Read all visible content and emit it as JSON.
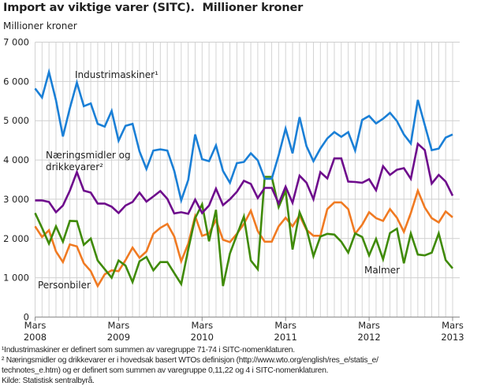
{
  "chart_data": {
    "type": "line",
    "title": "Import av viktige varer (SITC).  Millioner kroner",
    "ylabel": "Millioner kroner",
    "xlabel": "",
    "ylim": [
      0,
      7000
    ],
    "yticks": [
      "0",
      "1 000",
      "2 000",
      "3 000",
      "4 000",
      "5 000",
      "6 000",
      "7 000"
    ],
    "ytick_values": [
      0,
      1000,
      2000,
      3000,
      4000,
      5000,
      6000,
      7000
    ],
    "xticks": [
      {
        "month": "Mars",
        "year": "2008"
      },
      {
        "month": "Mars",
        "year": "2009"
      },
      {
        "month": "Mars",
        "year": "2010"
      },
      {
        "month": "Mars",
        "year": "2011"
      },
      {
        "month": "Mars",
        "year": "2012"
      },
      {
        "month": "Mars",
        "year": "2013"
      }
    ],
    "x_range": [
      "2008-03",
      "2013-03"
    ],
    "frequency": "monthly",
    "grid": true,
    "series": [
      {
        "name": "Industrimaskiner¹",
        "color": "#1a7fd6",
        "values": [
          5820,
          5590,
          6240,
          5520,
          4600,
          5320,
          5970,
          5370,
          5440,
          4920,
          4850,
          5250,
          4490,
          4870,
          4920,
          4220,
          3770,
          4240,
          4270,
          4240,
          3720,
          2970,
          3490,
          4650,
          4020,
          3970,
          4370,
          3720,
          3420,
          3920,
          3950,
          4170,
          3990,
          3520,
          3520,
          4120,
          4800,
          4170,
          5090,
          4350,
          3970,
          4290,
          4550,
          4710,
          4590,
          4710,
          4240,
          5020,
          5120,
          4930,
          5050,
          5200,
          4990,
          4650,
          4420,
          5530,
          4890,
          4250,
          4290,
          4570,
          4650
        ]
      },
      {
        "name": "Næringsmidler og drikkevarer²",
        "color": "#6e0b8c",
        "values": [
          2970,
          2970,
          2930,
          2670,
          2840,
          3220,
          3690,
          3220,
          3170,
          2890,
          2890,
          2810,
          2650,
          2840,
          2930,
          3170,
          2940,
          3070,
          3210,
          3010,
          2640,
          2670,
          2630,
          2990,
          2650,
          2840,
          3270,
          2850,
          3000,
          3190,
          3470,
          3390,
          3030,
          3290,
          3290,
          2890,
          3320,
          2910,
          3600,
          3420,
          3000,
          3690,
          3530,
          4040,
          4040,
          3450,
          3440,
          3420,
          3510,
          3230,
          3840,
          3620,
          3750,
          3790,
          3520,
          4410,
          4250,
          3400,
          3620,
          3450,
          3090
        ]
      },
      {
        "name": "Personbiler",
        "color": "#f07a22",
        "values": [
          2310,
          2040,
          2210,
          1670,
          1400,
          1850,
          1800,
          1370,
          1170,
          790,
          1090,
          1190,
          1170,
          1450,
          1770,
          1510,
          1670,
          2120,
          2270,
          2370,
          2050,
          1420,
          1870,
          2570,
          2070,
          2130,
          2470,
          1970,
          1910,
          2120,
          2370,
          2710,
          2190,
          1920,
          1920,
          2310,
          2530,
          2310,
          2590,
          2220,
          2070,
          2070,
          2750,
          2920,
          2920,
          2750,
          2120,
          2350,
          2670,
          2520,
          2450,
          2750,
          2530,
          2170,
          2650,
          3220,
          2790,
          2520,
          2410,
          2690,
          2540
        ]
      },
      {
        "name": "Malmer",
        "color": "#3f8a08",
        "values": [
          2650,
          2270,
          1870,
          2310,
          1920,
          2450,
          2440,
          1840,
          2000,
          1440,
          1220,
          1000,
          1440,
          1310,
          890,
          1420,
          1530,
          1190,
          1400,
          1400,
          1120,
          840,
          1720,
          2520,
          2870,
          1930,
          2730,
          790,
          1620,
          2090,
          2560,
          1440,
          1220,
          3570,
          3570,
          2800,
          3220,
          1720,
          2670,
          2250,
          1550,
          2050,
          2120,
          2100,
          1920,
          1640,
          2130,
          2040,
          1570,
          1990,
          1470,
          2140,
          2250,
          1370,
          2130,
          1590,
          1570,
          1640,
          2130,
          1450,
          1240
        ]
      }
    ]
  },
  "footnotes": [
    "¹Industrimaskiner er definert som summen av varegruppe 71-74 i SITC-nomenklaturen.",
    "² Næringsmidler og drikkevarer  er i hovedsak basert WTOs definisjon (http://www.wto.org/english/res_e/statis_e/",
    "technotes_e.htm) og er definert som summen av varegruppe 0,11,22 og 4 i SITC-nomenklaturen.",
    "Kilde: Statistisk sentralbyrå."
  ]
}
